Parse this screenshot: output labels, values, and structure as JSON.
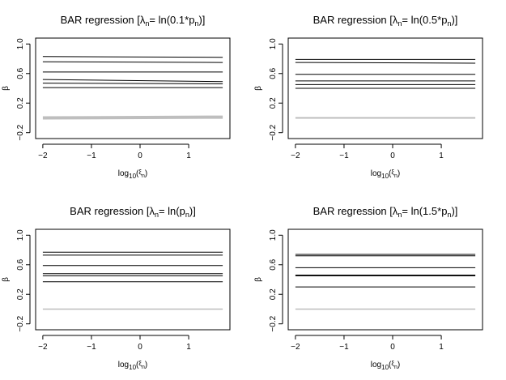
{
  "chart_data": [
    {
      "type": "line",
      "title": {
        "pre": "BAR regression [",
        "sym": "λ",
        "sym_sub": "n",
        "mid": "= ln(",
        "num": "0.1",
        "star": "*",
        "p": "p",
        "p_sub": "n",
        "post": ")]"
      },
      "xlabel": {
        "pre": "log",
        "sub": "10",
        "paren_open": "(",
        "sym": "ξ",
        "sym_sub": "n",
        "paren_close": ")"
      },
      "ylabel": "β",
      "xlim": [
        -2,
        1.7
      ],
      "ylim": [
        -0.28,
        1.08
      ],
      "xticks": [
        -2,
        -1,
        0,
        1
      ],
      "xtick_labels": [
        "−2",
        "−1",
        "0",
        "1"
      ],
      "yticks": [
        -0.2,
        0.2,
        0.6,
        1.0
      ],
      "ytick_labels": [
        "−0.2",
        "0.2",
        "0.6",
        "1.0"
      ],
      "series": [
        {
          "x": [
            -2,
            1.7
          ],
          "y": [
            0.83,
            0.82
          ],
          "color": "#000000",
          "width": 1
        },
        {
          "x": [
            -2,
            1.7
          ],
          "y": [
            0.76,
            0.75
          ],
          "color": "#000000",
          "width": 1
        },
        {
          "x": [
            -2,
            1.7
          ],
          "y": [
            0.62,
            0.62
          ],
          "color": "#000000",
          "width": 1
        },
        {
          "x": [
            -2,
            1.7
          ],
          "y": [
            0.52,
            0.49
          ],
          "color": "#000000",
          "width": 1
        },
        {
          "x": [
            -2,
            1.7
          ],
          "y": [
            0.47,
            0.46
          ],
          "color": "#000000",
          "width": 1
        },
        {
          "x": [
            -2,
            1.7
          ],
          "y": [
            0.41,
            0.41
          ],
          "color": "#000000",
          "width": 1
        },
        {
          "x": [
            -2,
            1.7
          ],
          "y": [
            0.0,
            0.01
          ],
          "color": "#bebebe",
          "width": 4
        }
      ]
    },
    {
      "type": "line",
      "title": {
        "pre": "BAR regression [",
        "sym": "λ",
        "sym_sub": "n",
        "mid": "= ln(",
        "num": "0.5",
        "star": "*",
        "p": "p",
        "p_sub": "n",
        "post": ")]"
      },
      "xlabel": {
        "pre": "log",
        "sub": "10",
        "paren_open": "(",
        "sym": "ξ",
        "sym_sub": "n",
        "paren_close": ")"
      },
      "ylabel": "β",
      "xlim": [
        -2,
        1.7
      ],
      "ylim": [
        -0.28,
        1.08
      ],
      "xticks": [
        -2,
        -1,
        0,
        1
      ],
      "xtick_labels": [
        "−2",
        "−1",
        "0",
        "1"
      ],
      "yticks": [
        -0.2,
        0.2,
        0.6,
        1.0
      ],
      "ytick_labels": [
        "−0.2",
        "0.2",
        "0.6",
        "1.0"
      ],
      "series": [
        {
          "x": [
            -2,
            1.7
          ],
          "y": [
            0.79,
            0.79
          ],
          "color": "#000000",
          "width": 1
        },
        {
          "x": [
            -2,
            1.7
          ],
          "y": [
            0.75,
            0.74
          ],
          "color": "#000000",
          "width": 1
        },
        {
          "x": [
            -2,
            1.7
          ],
          "y": [
            0.59,
            0.59
          ],
          "color": "#000000",
          "width": 1
        },
        {
          "x": [
            -2,
            1.7
          ],
          "y": [
            0.5,
            0.5
          ],
          "color": "#000000",
          "width": 1
        },
        {
          "x": [
            -2,
            1.7
          ],
          "y": [
            0.45,
            0.45
          ],
          "color": "#000000",
          "width": 1
        },
        {
          "x": [
            -2,
            1.7
          ],
          "y": [
            0.4,
            0.4
          ],
          "color": "#000000",
          "width": 1
        },
        {
          "x": [
            -2,
            1.7
          ],
          "y": [
            0.0,
            0.0
          ],
          "color": "#bebebe",
          "width": 2
        }
      ]
    },
    {
      "type": "line",
      "title": {
        "pre": "BAR regression [",
        "sym": "λ",
        "sym_sub": "n",
        "mid": "= ln(",
        "num": "",
        "star": "",
        "p": "p",
        "p_sub": "n",
        "post": ")]"
      },
      "xlabel": {
        "pre": "log",
        "sub": "10",
        "paren_open": "(",
        "sym": "ξ",
        "sym_sub": "n",
        "paren_close": ")"
      },
      "ylabel": "β",
      "xlim": [
        -2,
        1.7
      ],
      "ylim": [
        -0.28,
        1.08
      ],
      "xticks": [
        -2,
        -1,
        0,
        1
      ],
      "xtick_labels": [
        "−2",
        "−1",
        "0",
        "1"
      ],
      "yticks": [
        -0.2,
        0.2,
        0.6,
        1.0
      ],
      "ytick_labels": [
        "−0.2",
        "0.2",
        "0.6",
        "1.0"
      ],
      "series": [
        {
          "x": [
            -2,
            1.7
          ],
          "y": [
            0.77,
            0.77
          ],
          "color": "#000000",
          "width": 1
        },
        {
          "x": [
            -2,
            1.7
          ],
          "y": [
            0.73,
            0.73
          ],
          "color": "#000000",
          "width": 1
        },
        {
          "x": [
            -2,
            1.7
          ],
          "y": [
            0.59,
            0.59
          ],
          "color": "#000000",
          "width": 1
        },
        {
          "x": [
            -2,
            1.7
          ],
          "y": [
            0.48,
            0.48
          ],
          "color": "#000000",
          "width": 1
        },
        {
          "x": [
            -2,
            1.7
          ],
          "y": [
            0.45,
            0.45
          ],
          "color": "#000000",
          "width": 1
        },
        {
          "x": [
            -2,
            1.7
          ],
          "y": [
            0.37,
            0.37
          ],
          "color": "#000000",
          "width": 1
        },
        {
          "x": [
            -2,
            1.7
          ],
          "y": [
            0.0,
            0.0
          ],
          "color": "#bebebe",
          "width": 1.5
        }
      ]
    },
    {
      "type": "line",
      "title": {
        "pre": "BAR regression [",
        "sym": "λ",
        "sym_sub": "n",
        "mid": "= ln(",
        "num": "1.5",
        "star": "*",
        "p": "p",
        "p_sub": "n",
        "post": ")]"
      },
      "xlabel": {
        "pre": "log",
        "sub": "10",
        "paren_open": "(",
        "sym": "ξ",
        "sym_sub": "n",
        "paren_close": ")"
      },
      "ylabel": "β",
      "xlim": [
        -2,
        1.7
      ],
      "ylim": [
        -0.28,
        1.08
      ],
      "xticks": [
        -2,
        -1,
        0,
        1
      ],
      "xtick_labels": [
        "−2",
        "−1",
        "0",
        "1"
      ],
      "yticks": [
        -0.2,
        0.2,
        0.6,
        1.0
      ],
      "ytick_labels": [
        "−0.2",
        "0.2",
        "0.6",
        "1.0"
      ],
      "series": [
        {
          "x": [
            -2,
            1.7
          ],
          "y": [
            0.74,
            0.74
          ],
          "color": "#000000",
          "width": 1
        },
        {
          "x": [
            -2,
            1.7
          ],
          "y": [
            0.72,
            0.72
          ],
          "color": "#000000",
          "width": 1
        },
        {
          "x": [
            -2,
            1.7
          ],
          "y": [
            0.56,
            0.56
          ],
          "color": "#000000",
          "width": 1
        },
        {
          "x": [
            -2,
            1.7
          ],
          "y": [
            0.46,
            0.46
          ],
          "color": "#000000",
          "width": 1
        },
        {
          "x": [
            -2,
            1.7
          ],
          "y": [
            0.45,
            0.45
          ],
          "color": "#000000",
          "width": 1
        },
        {
          "x": [
            -2,
            1.7
          ],
          "y": [
            0.3,
            0.3
          ],
          "color": "#000000",
          "width": 1
        },
        {
          "x": [
            -2,
            1.7
          ],
          "y": [
            0.0,
            0.0
          ],
          "color": "#bebebe",
          "width": 1.5
        }
      ]
    }
  ]
}
